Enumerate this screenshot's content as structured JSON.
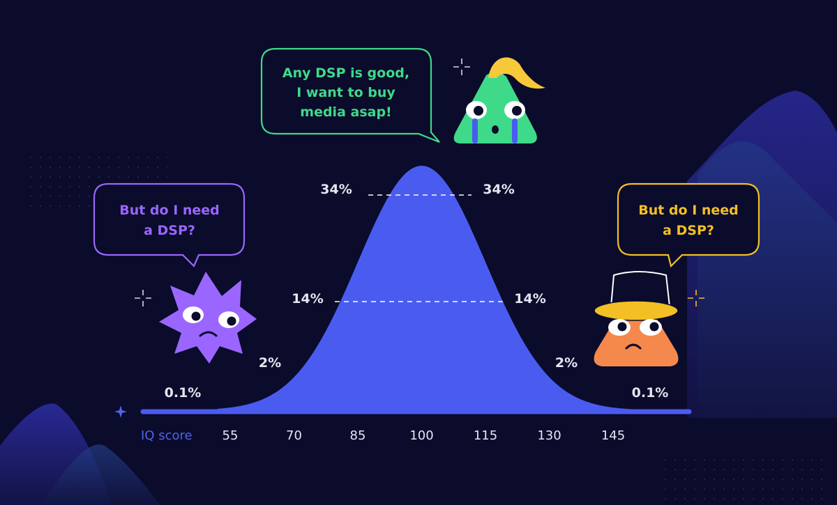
{
  "colors": {
    "background": "#0b0b2b",
    "curve": "#4a5cf0",
    "green": "#3fd98a",
    "purple": "#9a66ff",
    "yellow": "#f2c024",
    "orange": "#f5884c",
    "axis_label": "#4f63f0"
  },
  "chart_data": {
    "type": "area",
    "xlabel": "IQ score",
    "x_ticks": [
      55,
      70,
      85,
      100,
      115,
      130,
      145
    ],
    "mean": 100,
    "std": 15,
    "xlim": [
      45,
      160
    ],
    "distribution": "normal",
    "percent_labels": [
      {
        "text": "0.1%",
        "x": 50,
        "side": "left"
      },
      {
        "text": "2%",
        "x": 67,
        "side": "left"
      },
      {
        "text": "14%",
        "x": 80,
        "side": "left"
      },
      {
        "text": "34%",
        "x": 92,
        "side": "left"
      },
      {
        "text": "34%",
        "x": 108,
        "side": "right"
      },
      {
        "text": "14%",
        "x": 120,
        "side": "right"
      },
      {
        "text": "2%",
        "x": 133,
        "side": "right"
      },
      {
        "text": "0.1%",
        "x": 150,
        "side": "right"
      }
    ]
  },
  "bubbles": {
    "top": {
      "line1": "Any DSP is good,",
      "line2": "I want to buy",
      "line3": "media asap!"
    },
    "left": {
      "line1": "But do I need",
      "line2": "a DSP?"
    },
    "right": {
      "line1": "But do I need",
      "line2": "a DSP?"
    }
  },
  "characters": {
    "left": "purple-star-character",
    "top": "green-triangle-character",
    "right": "orange-cone-character"
  }
}
